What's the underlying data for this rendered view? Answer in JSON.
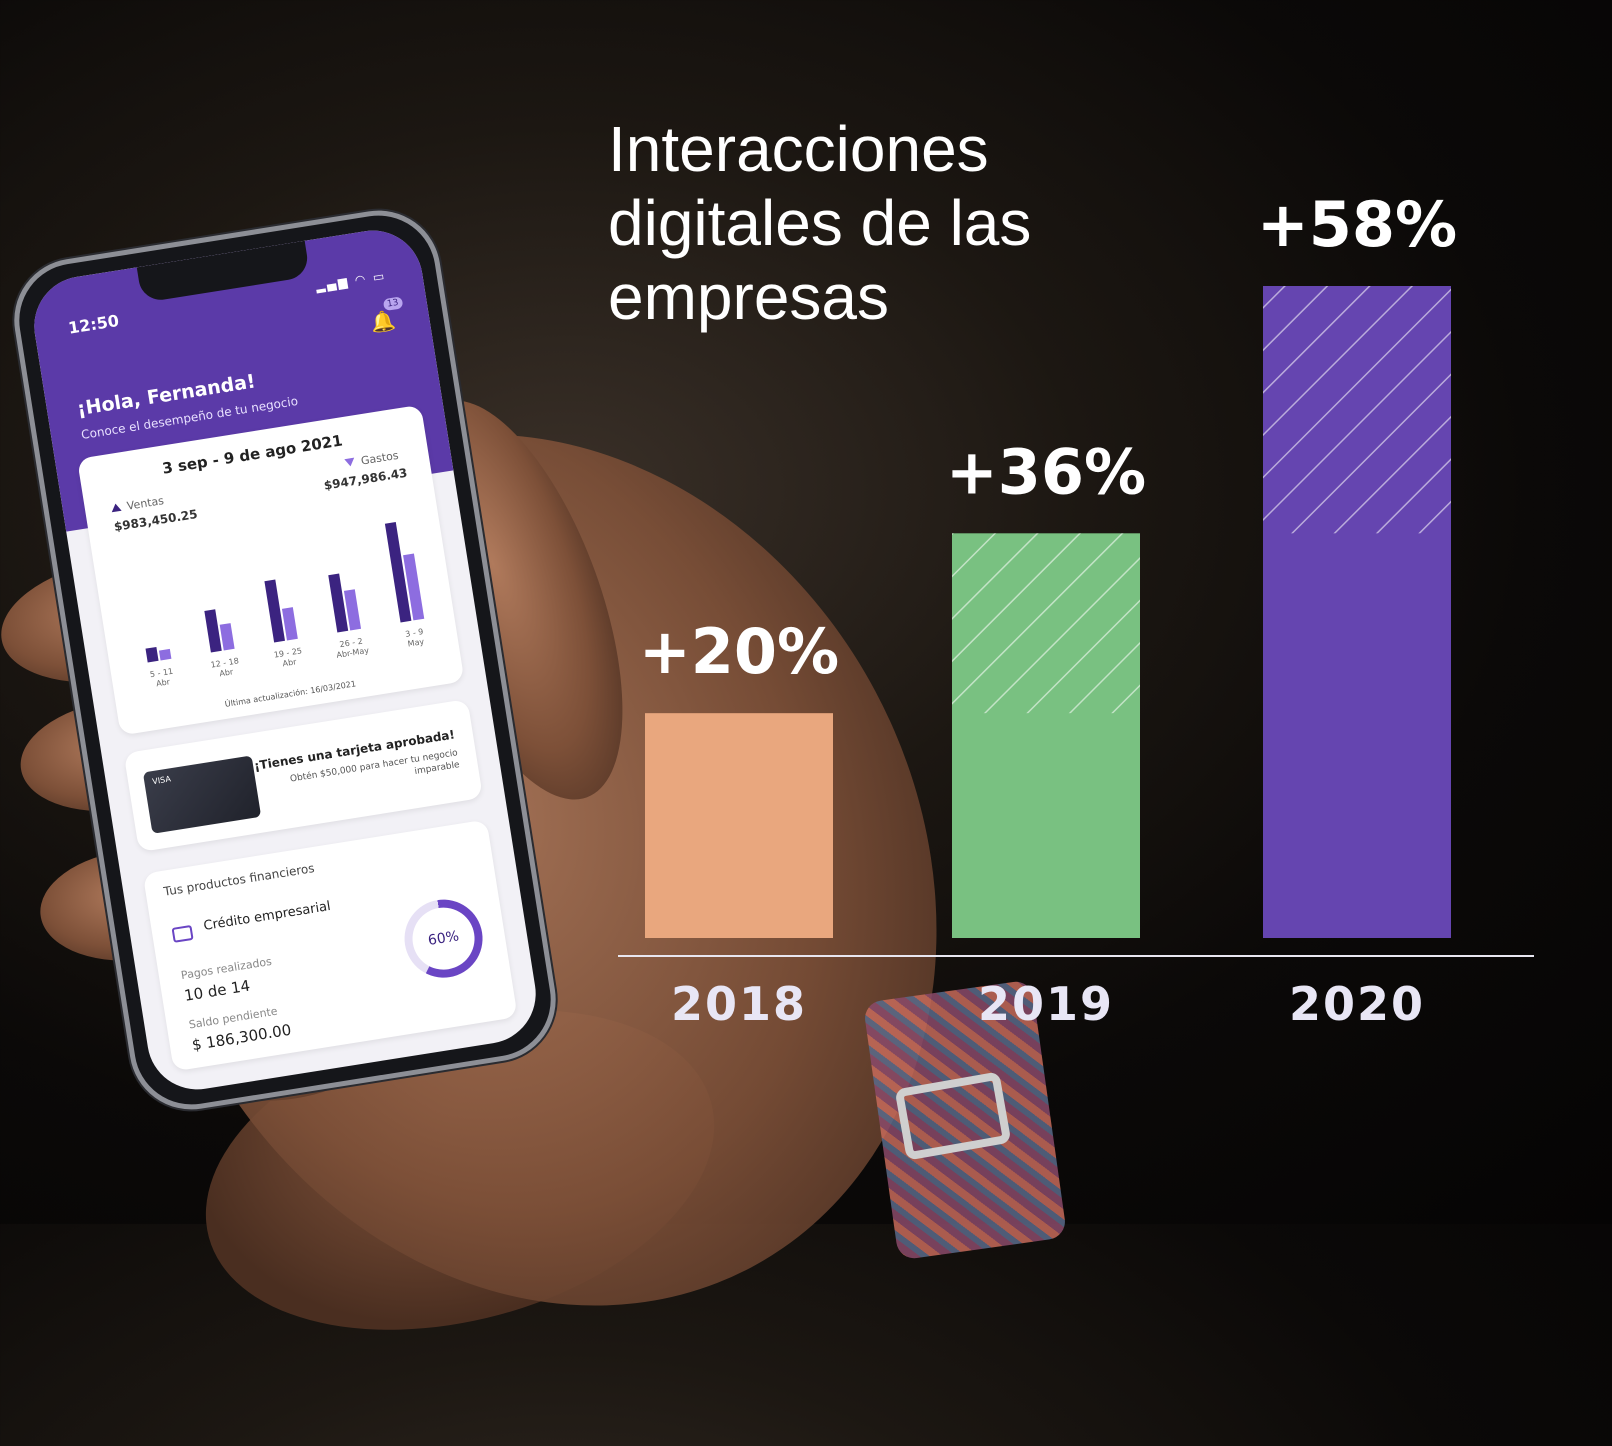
{
  "phone": {
    "time": "12:50",
    "notification_count": "13",
    "greeting": "¡Hola, Fernanda!",
    "subtitle": "Conoce el desempeño de tu negocio",
    "date_range": "3 sep - 9 de ago 2021",
    "ventas_label": "Ventas",
    "ventas_value": "$983,450.25",
    "gastos_label": "Gastos",
    "gastos_value": "$947,986.43",
    "mini_bars": [
      {
        "label": "5 - 11\nAbr",
        "ventas": 14,
        "gastos": 10
      },
      {
        "label": "12 - 18\nAbr",
        "ventas": 42,
        "gastos": 26
      },
      {
        "label": "19 - 25\nAbr",
        "ventas": 62,
        "gastos": 32
      },
      {
        "label": "26 - 2\nAbr-May",
        "ventas": 58,
        "gastos": 40
      },
      {
        "label": "3 - 9\nMay",
        "ventas": 100,
        "gastos": 66
      }
    ],
    "updated": "Última actualización: 16/03/2021",
    "promo_title": "¡Tienes una tarjeta aprobada!",
    "promo_sub": "Obtén $50,000 para hacer tu negocio imparable",
    "card_brand": "VISA",
    "products_header": "Tus productos financieros",
    "credit_label": "Crédito empresarial",
    "pagos_label": "Pagos realizados",
    "pagos_value": "10 de 14",
    "saldo_label": "Saldo pendiente",
    "saldo_value": "$ 186,300.00",
    "progress_label": "60%",
    "progress": 0.6
  },
  "chart_data": {
    "type": "bar",
    "title": "Interacciones digitales de las empresas",
    "categories": [
      "2018",
      "2019",
      "2020"
    ],
    "values": [
      20,
      36,
      58
    ],
    "labels": [
      "+20%",
      "+36%",
      "+58%"
    ],
    "colors": [
      "#E9A77E",
      "#79C181",
      "#6545B0"
    ],
    "grid": false
  }
}
